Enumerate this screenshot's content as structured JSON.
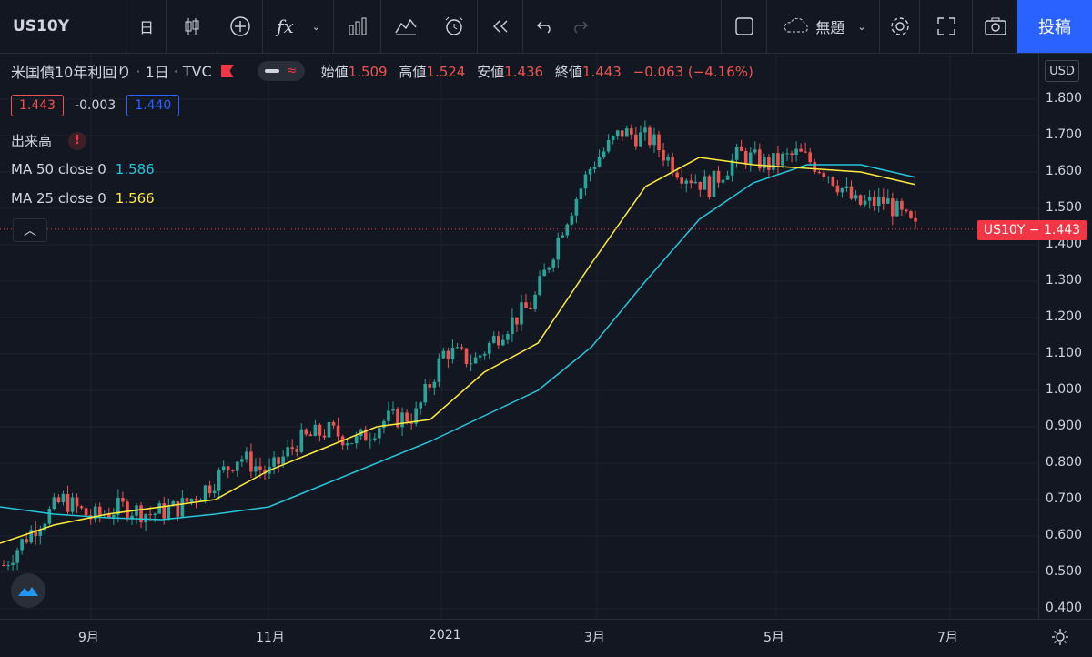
{
  "toolbar": {
    "symbol": "US10Y",
    "interval": "日",
    "fx_label": "fx",
    "layout_name": "無題",
    "post_label": "投稿"
  },
  "header": {
    "instrument": "米国債10年利回り",
    "interval": "1日",
    "exchange": "TVC",
    "open_label": "始値",
    "open": "1.509",
    "high_label": "高値",
    "high": "1.524",
    "low_label": "安値",
    "low": "1.436",
    "close_label": "終値",
    "close": "1.443",
    "change": "−0.063 (−4.16%)"
  },
  "quote": {
    "bid": "1.443",
    "spread": "-0.003",
    "ask": "1.440"
  },
  "indicators": [
    {
      "label": "出来高",
      "value": ""
    },
    {
      "label": "MA 50 close 0",
      "value": "1.586"
    },
    {
      "label": "MA 25 close 0",
      "value": "1.566"
    }
  ],
  "price_axis": {
    "currency": "USD",
    "ticks": [
      "1.800",
      "1.700",
      "1.600",
      "1.500",
      "1.400",
      "1.300",
      "1.200",
      "1.100",
      "1.000",
      "0.900",
      "0.800",
      "0.700",
      "0.600",
      "0.500",
      "0.400"
    ],
    "last_badge": "US10Y  −  1.443"
  },
  "time_axis": {
    "ticks": [
      "9月",
      "11月",
      "2021",
      "3月",
      "5月",
      "7月"
    ]
  },
  "colors": {
    "up": "#26a69a",
    "down": "#ef5350",
    "ma50": "#26c6da",
    "ma25": "#ffeb3b",
    "accent": "#2962ff"
  },
  "chart_data": {
    "type": "candlestick",
    "ylim": [
      0.4,
      1.8
    ],
    "series": [
      {
        "name": "MA 50 close 0",
        "values": [
          0.68,
          0.66,
          0.65,
          0.645,
          0.66,
          0.68,
          0.74,
          0.8,
          0.86,
          0.93,
          1.0,
          1.12,
          1.3,
          1.47,
          1.57,
          1.62,
          1.62,
          1.586
        ]
      },
      {
        "name": "MA 25 close 0",
        "values": [
          0.58,
          0.63,
          0.66,
          0.68,
          0.7,
          0.78,
          0.84,
          0.9,
          0.92,
          1.05,
          1.13,
          1.35,
          1.56,
          1.64,
          1.62,
          1.61,
          1.6,
          1.566
        ]
      }
    ],
    "closes": [
      0.52,
      0.62,
      0.7,
      0.65,
      0.68,
      0.66,
      0.68,
      0.74,
      0.82,
      0.77,
      0.86,
      0.89,
      0.86,
      0.92,
      0.93,
      1.11,
      1.08,
      1.17,
      1.24,
      1.45,
      1.62,
      1.71,
      1.69,
      1.6,
      1.56,
      1.65,
      1.62,
      1.65,
      1.6,
      1.51,
      1.52,
      1.443
    ]
  }
}
